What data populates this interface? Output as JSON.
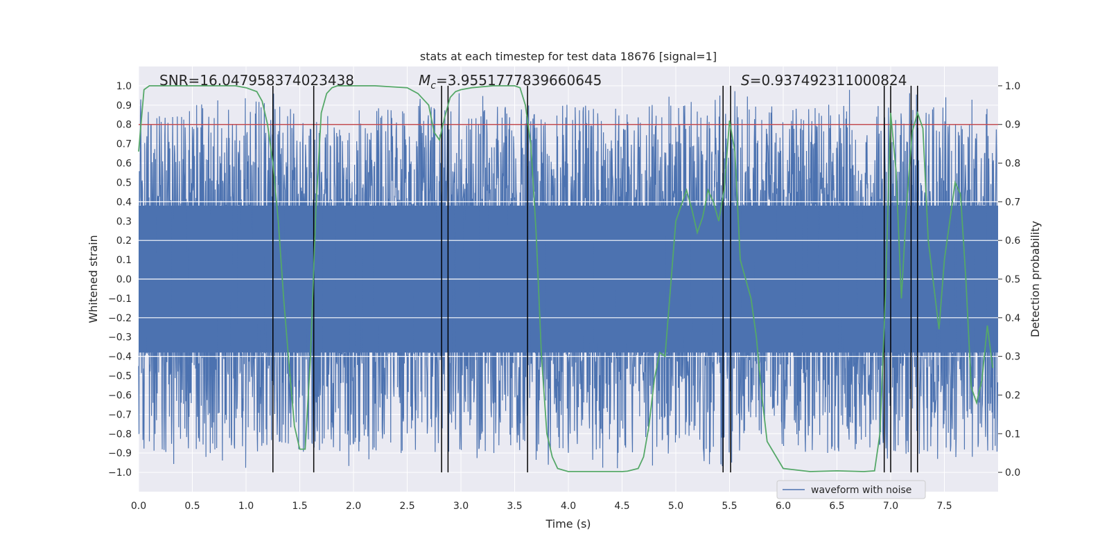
{
  "chart_data": {
    "type": "line",
    "title": "stats at each timestep for test data 18676 [signal=1]",
    "xlabel": "Time (s)",
    "ylabel": "Whitened strain",
    "y2label": "Detection probability",
    "xlim": [
      0.0,
      8.0
    ],
    "ylim": [
      -1.1,
      1.1
    ],
    "y2lim": [
      -0.05,
      1.05
    ],
    "xticks": [
      0.0,
      0.5,
      1.0,
      1.5,
      2.0,
      2.5,
      3.0,
      3.5,
      4.0,
      4.5,
      5.0,
      5.5,
      6.0,
      6.5,
      7.0,
      7.5
    ],
    "xtick_labels": [
      "0.0",
      "0.5",
      "1.0",
      "1.5",
      "2.0",
      "2.5",
      "3.0",
      "3.5",
      "4.0",
      "4.5",
      "5.0",
      "5.5",
      "6.0",
      "6.5",
      "7.0",
      "7.5"
    ],
    "yticks": [
      -1.0,
      -0.9,
      -0.8,
      -0.7,
      -0.6,
      -0.5,
      -0.4,
      -0.3,
      -0.2,
      -0.1,
      0.0,
      0.1,
      0.2,
      0.3,
      0.4,
      0.5,
      0.6,
      0.7,
      0.8,
      0.9,
      1.0
    ],
    "ytick_labels": [
      "−1.0",
      "−0.9",
      "−0.8",
      "−0.7",
      "−0.6",
      "−0.5",
      "−0.4",
      "−0.3",
      "−0.2",
      "−0.1",
      "0.0",
      "0.1",
      "0.2",
      "0.3",
      "0.4",
      "0.5",
      "0.6",
      "0.7",
      "0.8",
      "0.9",
      "1.0"
    ],
    "y2ticks": [
      0.0,
      0.1,
      0.2,
      0.3,
      0.4,
      0.5,
      0.6,
      0.7,
      0.8,
      0.9,
      1.0
    ],
    "y2tick_labels": [
      "0.0",
      "0.1",
      "0.2",
      "0.3",
      "0.4",
      "0.5",
      "0.6",
      "0.7",
      "0.8",
      "0.9",
      "1.0"
    ],
    "y2_gridlines": [
      0.3,
      0.4,
      0.5,
      0.6,
      0.7
    ],
    "annotations": {
      "snr": "SNR=16.047958374023438",
      "mc_symbol": "M",
      "mc_sub": "c",
      "mc_value": "=3.9551777839660645",
      "s_symbol": "S",
      "s_value": "=0.937492311000824"
    },
    "legend": {
      "label": "waveform with noise",
      "position": "lower-right"
    },
    "threshold": 0.8,
    "noise": {
      "name": "waveform with noise",
      "color": "#4c72b0",
      "n_samples": 2400,
      "seed": 18676,
      "core_amplitude": 0.38,
      "spike_max": 0.98
    },
    "detection_probability": {
      "name": "detection probability",
      "color": "#55a868",
      "x": [
        0.0,
        0.05,
        0.1,
        0.15,
        0.25,
        0.5,
        0.75,
        0.9,
        1.0,
        1.1,
        1.15,
        1.2,
        1.25,
        1.3,
        1.35,
        1.4,
        1.45,
        1.5,
        1.55,
        1.6,
        1.65,
        1.7,
        1.75,
        1.8,
        1.85,
        1.95,
        2.2,
        2.5,
        2.6,
        2.7,
        2.75,
        2.8,
        2.85,
        2.9,
        2.95,
        3.0,
        3.1,
        3.3,
        3.5,
        3.55,
        3.6,
        3.65,
        3.7,
        3.75,
        3.8,
        3.85,
        3.9,
        4.0,
        4.2,
        4.5,
        4.55,
        4.65,
        4.7,
        4.75,
        4.8,
        4.85,
        4.9,
        5.0,
        5.1,
        5.15,
        5.2,
        5.25,
        5.3,
        5.35,
        5.4,
        5.45,
        5.5,
        5.55,
        5.6,
        5.7,
        5.75,
        5.8,
        5.85,
        6.0,
        6.25,
        6.5,
        6.75,
        6.85,
        6.9,
        6.95,
        7.0,
        7.05,
        7.1,
        7.15,
        7.2,
        7.25,
        7.3,
        7.35,
        7.45,
        7.5,
        7.55,
        7.6,
        7.65,
        7.7,
        7.75,
        7.8,
        7.85,
        7.9,
        7.95
      ],
      "y": [
        0.83,
        0.99,
        1.0,
        1.0,
        1.0,
        1.0,
        1.0,
        1.0,
        0.995,
        0.985,
        0.96,
        0.9,
        0.8,
        0.65,
        0.45,
        0.28,
        0.12,
        0.06,
        0.06,
        0.3,
        0.68,
        0.93,
        0.98,
        0.995,
        1.0,
        1.0,
        1.0,
        0.995,
        0.98,
        0.95,
        0.88,
        0.86,
        0.92,
        0.97,
        0.985,
        0.99,
        0.995,
        1.0,
        1.0,
        0.995,
        0.95,
        0.85,
        0.62,
        0.3,
        0.1,
        0.04,
        0.01,
        0.002,
        0.002,
        0.002,
        0.003,
        0.01,
        0.04,
        0.12,
        0.24,
        0.31,
        0.3,
        0.65,
        0.73,
        0.68,
        0.62,
        0.66,
        0.73,
        0.7,
        0.65,
        0.73,
        0.91,
        0.83,
        0.55,
        0.45,
        0.35,
        0.2,
        0.08,
        0.01,
        0.002,
        0.004,
        0.002,
        0.004,
        0.1,
        0.45,
        0.93,
        0.78,
        0.45,
        0.7,
        0.88,
        0.93,
        0.89,
        0.6,
        0.37,
        0.55,
        0.65,
        0.75,
        0.72,
        0.5,
        0.22,
        0.18,
        0.24,
        0.38,
        0.27
      ]
    },
    "vertical_lines": [
      1.25,
      1.63,
      2.82,
      2.88,
      3.62,
      5.44,
      5.51,
      6.94,
      7.0,
      7.19,
      7.25
    ]
  }
}
